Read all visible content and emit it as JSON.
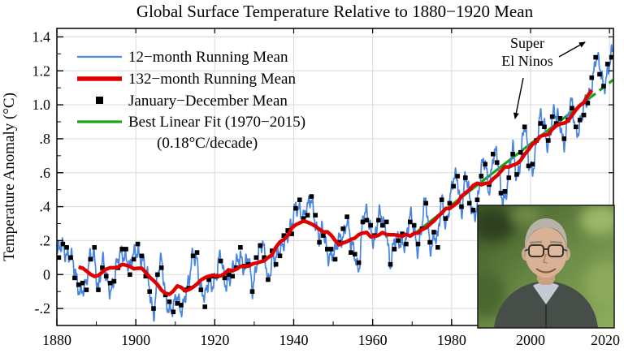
{
  "title": "Global Surface Temperature Relative to 1880−1920 Mean",
  "ylabel": "Temperature Anomaly (°C)",
  "legend": [
    {
      "label": "12−month Running Mean",
      "color": "#4a86e0",
      "type": "line"
    },
    {
      "label": "132−month Running Mean",
      "color": "#e00000",
      "type": "line"
    },
    {
      "label": "January−December Mean",
      "color": "#000000",
      "type": "square"
    },
    {
      "label": "Best Linear Fit (1970−2015)",
      "color": "#19a319",
      "type": "line"
    }
  ],
  "legend_note": "(0.18°C/decade)",
  "annotation": {
    "line1": "Super",
    "line2": "El Ninos"
  },
  "colors": {
    "blue": "#4a86e0",
    "red": "#e00000",
    "green": "#19a319",
    "black": "#000000",
    "grid": "#d9d9d9"
  },
  "chart_data": {
    "type": "line",
    "title": "Global Surface Temperature Relative to 1880−1920 Mean",
    "xlabel": "",
    "ylabel": "Temperature Anomaly (°C)",
    "xlim": [
      1880,
      2021
    ],
    "ylim": [
      -0.3,
      1.45
    ],
    "grid": true,
    "legend_position": "upper-left",
    "x_ticks": [
      1880,
      1900,
      1920,
      1940,
      1960,
      1980,
      2000,
      2020
    ],
    "x_minor_step": 10,
    "y_ticks": [
      {
        "v": -0.2,
        "label": "-.2"
      },
      {
        "v": 0.0,
        "label": "0"
      },
      {
        "v": 0.2,
        "label": ".2"
      },
      {
        "v": 0.4,
        "label": ".4"
      },
      {
        "v": 0.6,
        "label": ".6"
      },
      {
        "v": 0.8,
        "label": ".8"
      },
      {
        "v": 1.0,
        "label": "1.0"
      },
      {
        "v": 1.2,
        "label": "1.2"
      },
      {
        "v": 1.4,
        "label": "1.4"
      }
    ],
    "y_minor_step": 0.1,
    "series": {
      "annual_january_december_mean": {
        "start_year": 1880,
        "values": [
          0.1,
          0.18,
          0.16,
          0.1,
          -0.02,
          -0.06,
          -0.05,
          -0.09,
          0.09,
          0.16,
          -0.09,
          0.04,
          -0.01,
          -0.05,
          -0.04,
          0.04,
          0.15,
          0.15,
          0.0,
          0.09,
          0.18,
          0.11,
          -0.01,
          -0.1,
          -0.2,
          0.0,
          0.04,
          -0.12,
          -0.16,
          -0.22,
          -0.17,
          -0.18,
          -0.09,
          -0.08,
          0.11,
          0.13,
          -0.09,
          -0.19,
          -0.03,
          -0.01,
          -0.01,
          0.08,
          -0.02,
          0.0,
          -0.01,
          0.04,
          0.16,
          0.05,
          0.06,
          -0.1,
          0.1,
          0.17,
          0.1,
          -0.03,
          0.14,
          0.06,
          0.11,
          0.23,
          0.26,
          0.24,
          0.39,
          0.44,
          0.33,
          0.35,
          0.46,
          0.35,
          0.19,
          0.23,
          0.15,
          0.15,
          0.09,
          0.19,
          0.27,
          0.34,
          0.13,
          0.12,
          0.07,
          0.31,
          0.32,
          0.29,
          0.23,
          0.32,
          0.29,
          0.31,
          0.06,
          0.15,
          0.2,
          0.24,
          0.18,
          0.31,
          0.29,
          0.18,
          0.27,
          0.42,
          0.19,
          0.25,
          0.16,
          0.44,
          0.33,
          0.42,
          0.52,
          0.58,
          0.4,
          0.57,
          0.42,
          0.38,
          0.44,
          0.58,
          0.65,
          0.53,
          0.71,
          0.66,
          0.48,
          0.49,
          0.57,
          0.71,
          0.59,
          0.72,
          0.87,
          0.64,
          0.65,
          0.79,
          0.89,
          0.87,
          0.79,
          0.93,
          0.89,
          0.92,
          0.8,
          0.91,
          0.98,
          0.87,
          0.91,
          0.94,
          1.01,
          1.16,
          1.28,
          1.18,
          1.11,
          1.24,
          1.28
        ]
      }
    },
    "smoothing": {
      "blue_running_mean_months": 12,
      "red_running_mean_months": 132,
      "blue_wiggle": {
        "amplitude": 0.05,
        "components": [
          [
            3.7,
            0.0,
            1.0
          ],
          [
            1.13,
            1.1,
            0.65
          ],
          [
            0.47,
            2.3,
            0.4
          ]
        ]
      }
    },
    "linear_fit": {
      "start_year": 1970,
      "end_year": 2015,
      "value_at_start": 0.23,
      "slope_per_year": 0.018,
      "rate_label": "0.18°C/decade",
      "dash_extend_to_year": 2020.9
    },
    "annotation_targets": [
      {
        "label": "Super El Nino",
        "year": 1998,
        "value": 0.95
      },
      {
        "label": "Super El Nino",
        "year": 2016,
        "value": 1.33
      }
    ]
  }
}
